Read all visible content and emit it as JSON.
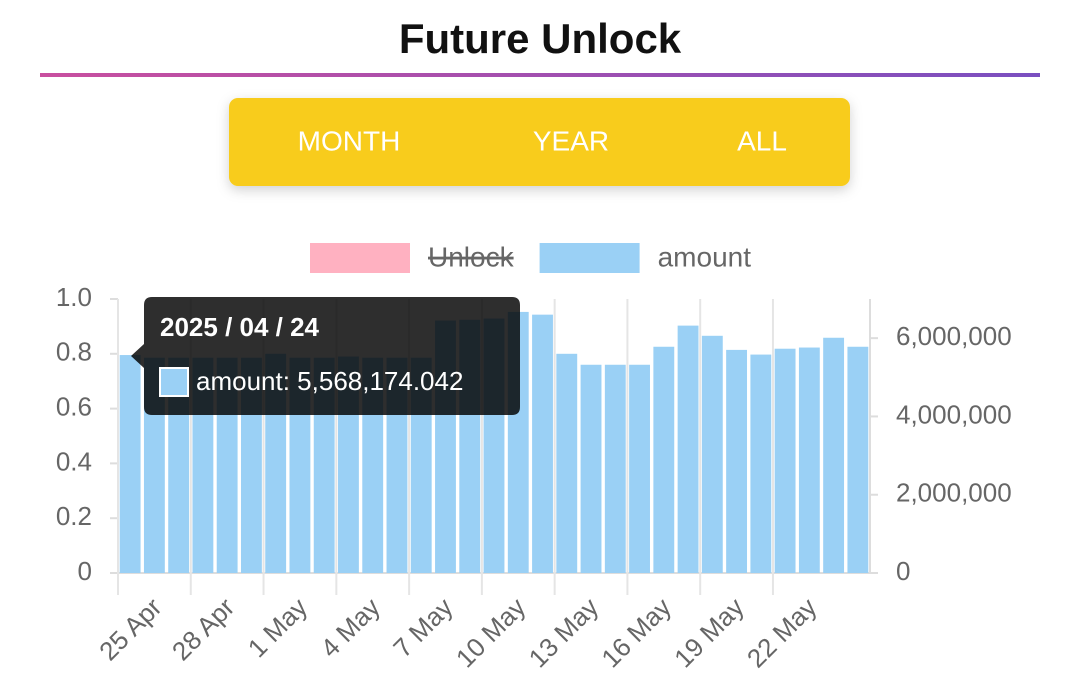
{
  "header": {
    "title": "Future Unlock"
  },
  "tabs": [
    "MONTH",
    "YEAR",
    "ALL"
  ],
  "chart_data": {
    "type": "bar",
    "categories": [
      null,
      "25 Apr",
      null,
      null,
      "28 Apr",
      null,
      null,
      "1 May",
      null,
      null,
      "4 May",
      null,
      null,
      "7 May",
      null,
      null,
      "10 May",
      null,
      null,
      "13 May",
      null,
      null,
      "16 May",
      null,
      null,
      "19 May",
      null,
      null,
      "22 May",
      null,
      null
    ],
    "series": [
      {
        "name": "Unlock",
        "color": "#ffb1c1",
        "hidden": true
      },
      {
        "name": "amount",
        "color": "#9ad0f5",
        "axis": "y2",
        "values": [
          5568174.042,
          5500000,
          5500000,
          5500000,
          5500000,
          5500000,
          5600000,
          5500000,
          5500000,
          5530000,
          5500000,
          5500000,
          5500000,
          6450000,
          6470000,
          6500000,
          6670000,
          6600000,
          5600000,
          5320000,
          5320000,
          5320000,
          5780000,
          6320000,
          6060000,
          5700000,
          5580000,
          5730000,
          5760000,
          6010000,
          5780000
        ]
      }
    ],
    "ylim": [
      0,
      1
    ],
    "yticks": [
      0,
      0.2,
      0.4,
      0.6,
      0.8,
      {
        "value": 1,
        "label": "1.0"
      }
    ],
    "y2lim": [
      0,
      7000000
    ],
    "y2ticks": [
      0,
      {
        "value": 2000000,
        "label": "2,000,000"
      },
      {
        "value": 4000000,
        "label": "4,000,000"
      },
      {
        "value": 6000000,
        "label": "6,000,000"
      }
    ],
    "legend": "top",
    "grid": true
  },
  "tooltip": {
    "index": 0,
    "title": "2025 / 04 / 24",
    "label": "amount: 5,568,174.042"
  }
}
